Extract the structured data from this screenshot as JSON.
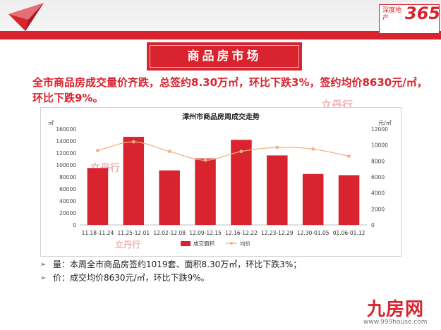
{
  "brand": {
    "small_text": "深度地产",
    "number": "365"
  },
  "section_title": "商品房市场",
  "headline": "全市商品房成交量价齐跌，总签约8.30万㎡，环比下跌3%，签约均价8630元/㎡，环比下跌9%。",
  "watermark_text": "立丹行",
  "bullets": [
    {
      "label": "量：",
      "text": "本周全市商品房签约1019套、面积8.30万㎡，环比下跌3%；"
    },
    {
      "label": "价：",
      "text": "成交均价8630元/㎡，环比下跌9%。"
    }
  ],
  "footer": {
    "name": "九房网",
    "url": "www.999house.com"
  },
  "colors": {
    "accent": "#d9232e",
    "line": "#f4b183",
    "grid": "#d9d9d9"
  },
  "chart_data": {
    "type": "bar",
    "title": "漳州市商品房周成交走势",
    "left_unit": "㎡",
    "right_unit": "元/㎡",
    "categories": [
      "11.18-11.24",
      "11.25-12.01",
      "12.02-12.08",
      "12.09-12.15",
      "12.16-12.22",
      "12.23-12.29",
      "12.30-01.05",
      "01.06-01.12"
    ],
    "y_left": {
      "min": 0,
      "max": 160000,
      "step": 20000,
      "ticks": [
        "0",
        "20000",
        "40000",
        "60000",
        "80000",
        "100000",
        "120000",
        "140000",
        "160000"
      ]
    },
    "y_right": {
      "min": 0,
      "max": 12000,
      "step": 2000,
      "ticks": [
        "0",
        "2000",
        "4000",
        "6000",
        "8000",
        "10000",
        "12000"
      ]
    },
    "series": [
      {
        "name": "成交面积",
        "kind": "bar",
        "axis": "left",
        "values": [
          95000,
          147000,
          91000,
          111000,
          142000,
          116000,
          85000,
          83000
        ]
      },
      {
        "name": "均价",
        "kind": "line",
        "axis": "right",
        "values": [
          9300,
          10400,
          9200,
          8100,
          9200,
          9700,
          9500,
          8600
        ]
      }
    ],
    "legend_position": "bottom",
    "grid": false
  }
}
